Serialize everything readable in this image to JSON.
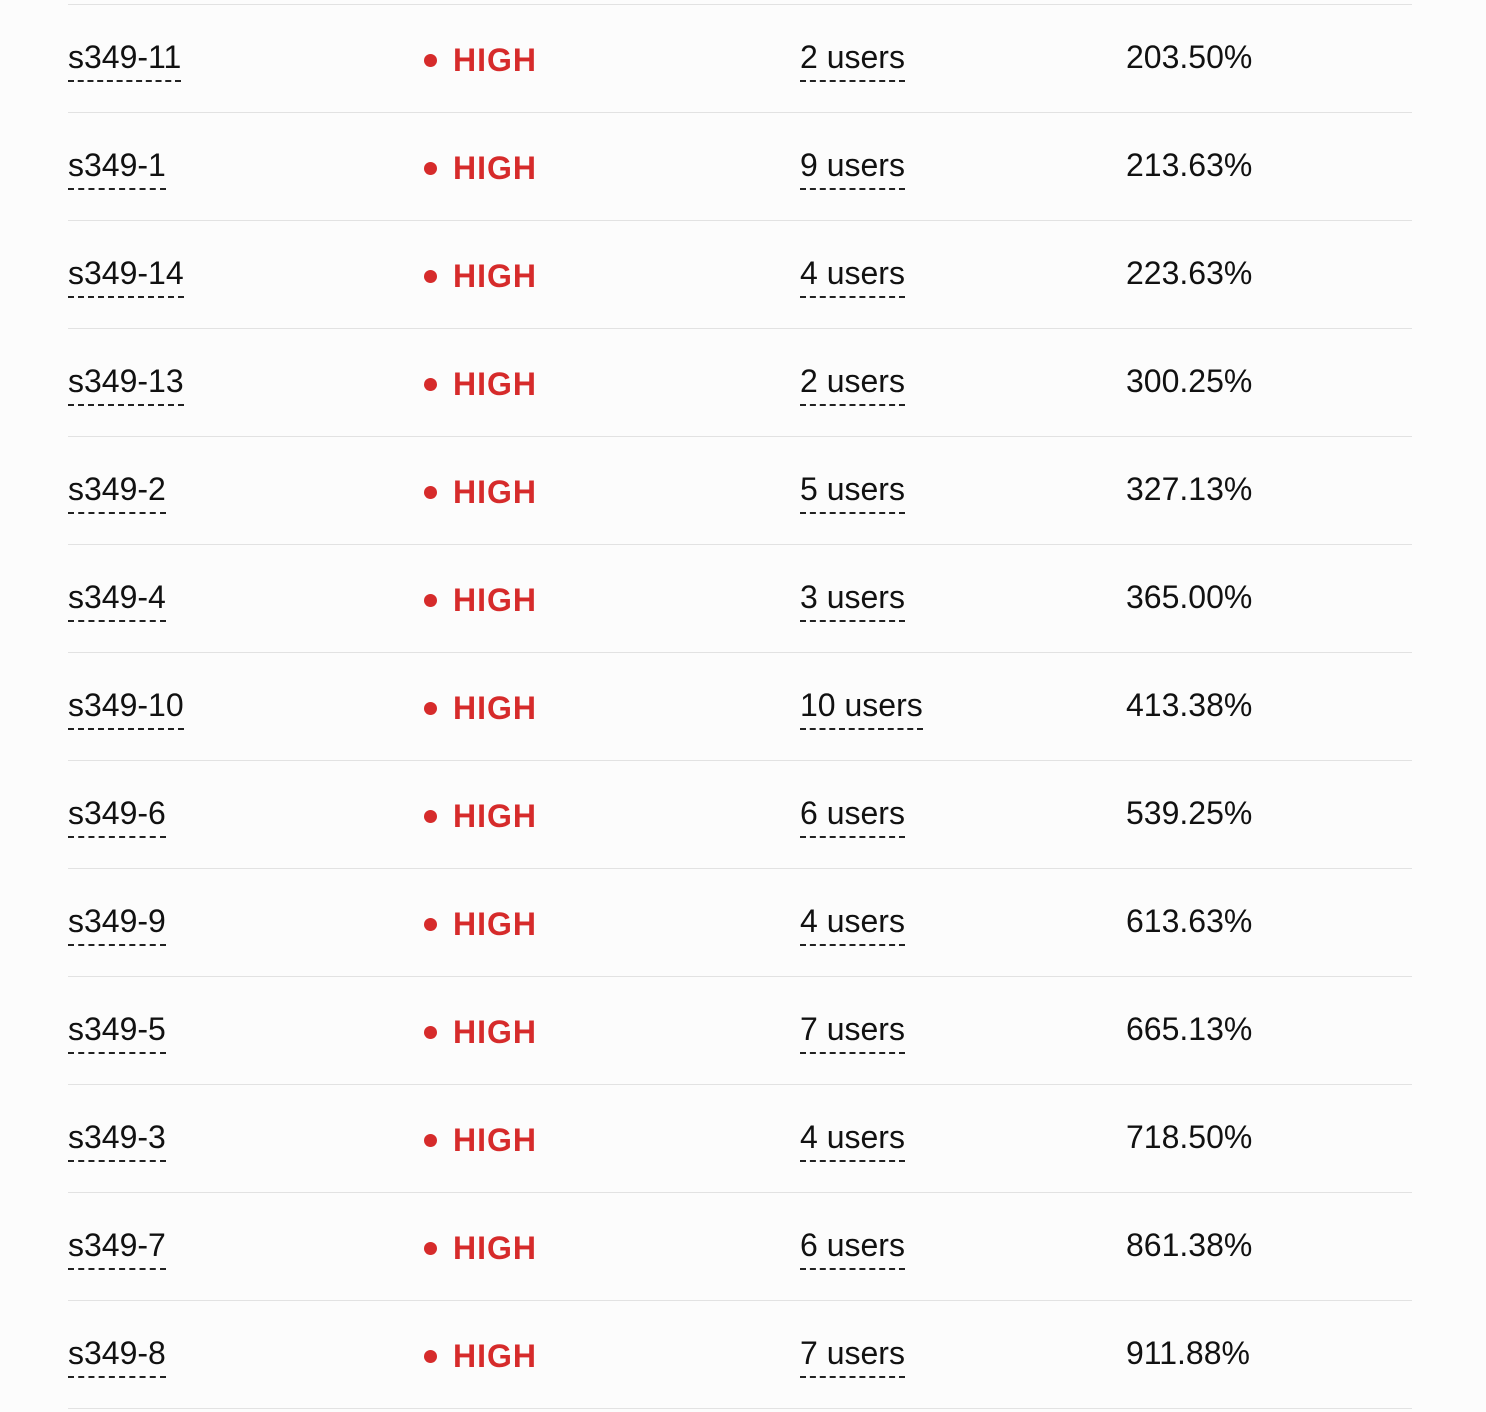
{
  "colors": {
    "severity_high": "#d62b2b"
  },
  "rows": [
    {
      "id": "s349-11",
      "severity": "HIGH",
      "users": "2 users",
      "percent": "203.50%"
    },
    {
      "id": "s349-1",
      "severity": "HIGH",
      "users": "9 users",
      "percent": "213.63%"
    },
    {
      "id": "s349-14",
      "severity": "HIGH",
      "users": "4 users",
      "percent": "223.63%"
    },
    {
      "id": "s349-13",
      "severity": "HIGH",
      "users": "2 users",
      "percent": "300.25%"
    },
    {
      "id": "s349-2",
      "severity": "HIGH",
      "users": "5 users",
      "percent": "327.13%"
    },
    {
      "id": "s349-4",
      "severity": "HIGH",
      "users": "3 users",
      "percent": "365.00%"
    },
    {
      "id": "s349-10",
      "severity": "HIGH",
      "users": "10 users",
      "percent": "413.38%"
    },
    {
      "id": "s349-6",
      "severity": "HIGH",
      "users": "6 users",
      "percent": "539.25%"
    },
    {
      "id": "s349-9",
      "severity": "HIGH",
      "users": "4 users",
      "percent": "613.63%"
    },
    {
      "id": "s349-5",
      "severity": "HIGH",
      "users": "7 users",
      "percent": "665.13%"
    },
    {
      "id": "s349-3",
      "severity": "HIGH",
      "users": "4 users",
      "percent": "718.50%"
    },
    {
      "id": "s349-7",
      "severity": "HIGH",
      "users": "6 users",
      "percent": "861.38%"
    },
    {
      "id": "s349-8",
      "severity": "HIGH",
      "users": "7 users",
      "percent": "911.88%"
    }
  ]
}
